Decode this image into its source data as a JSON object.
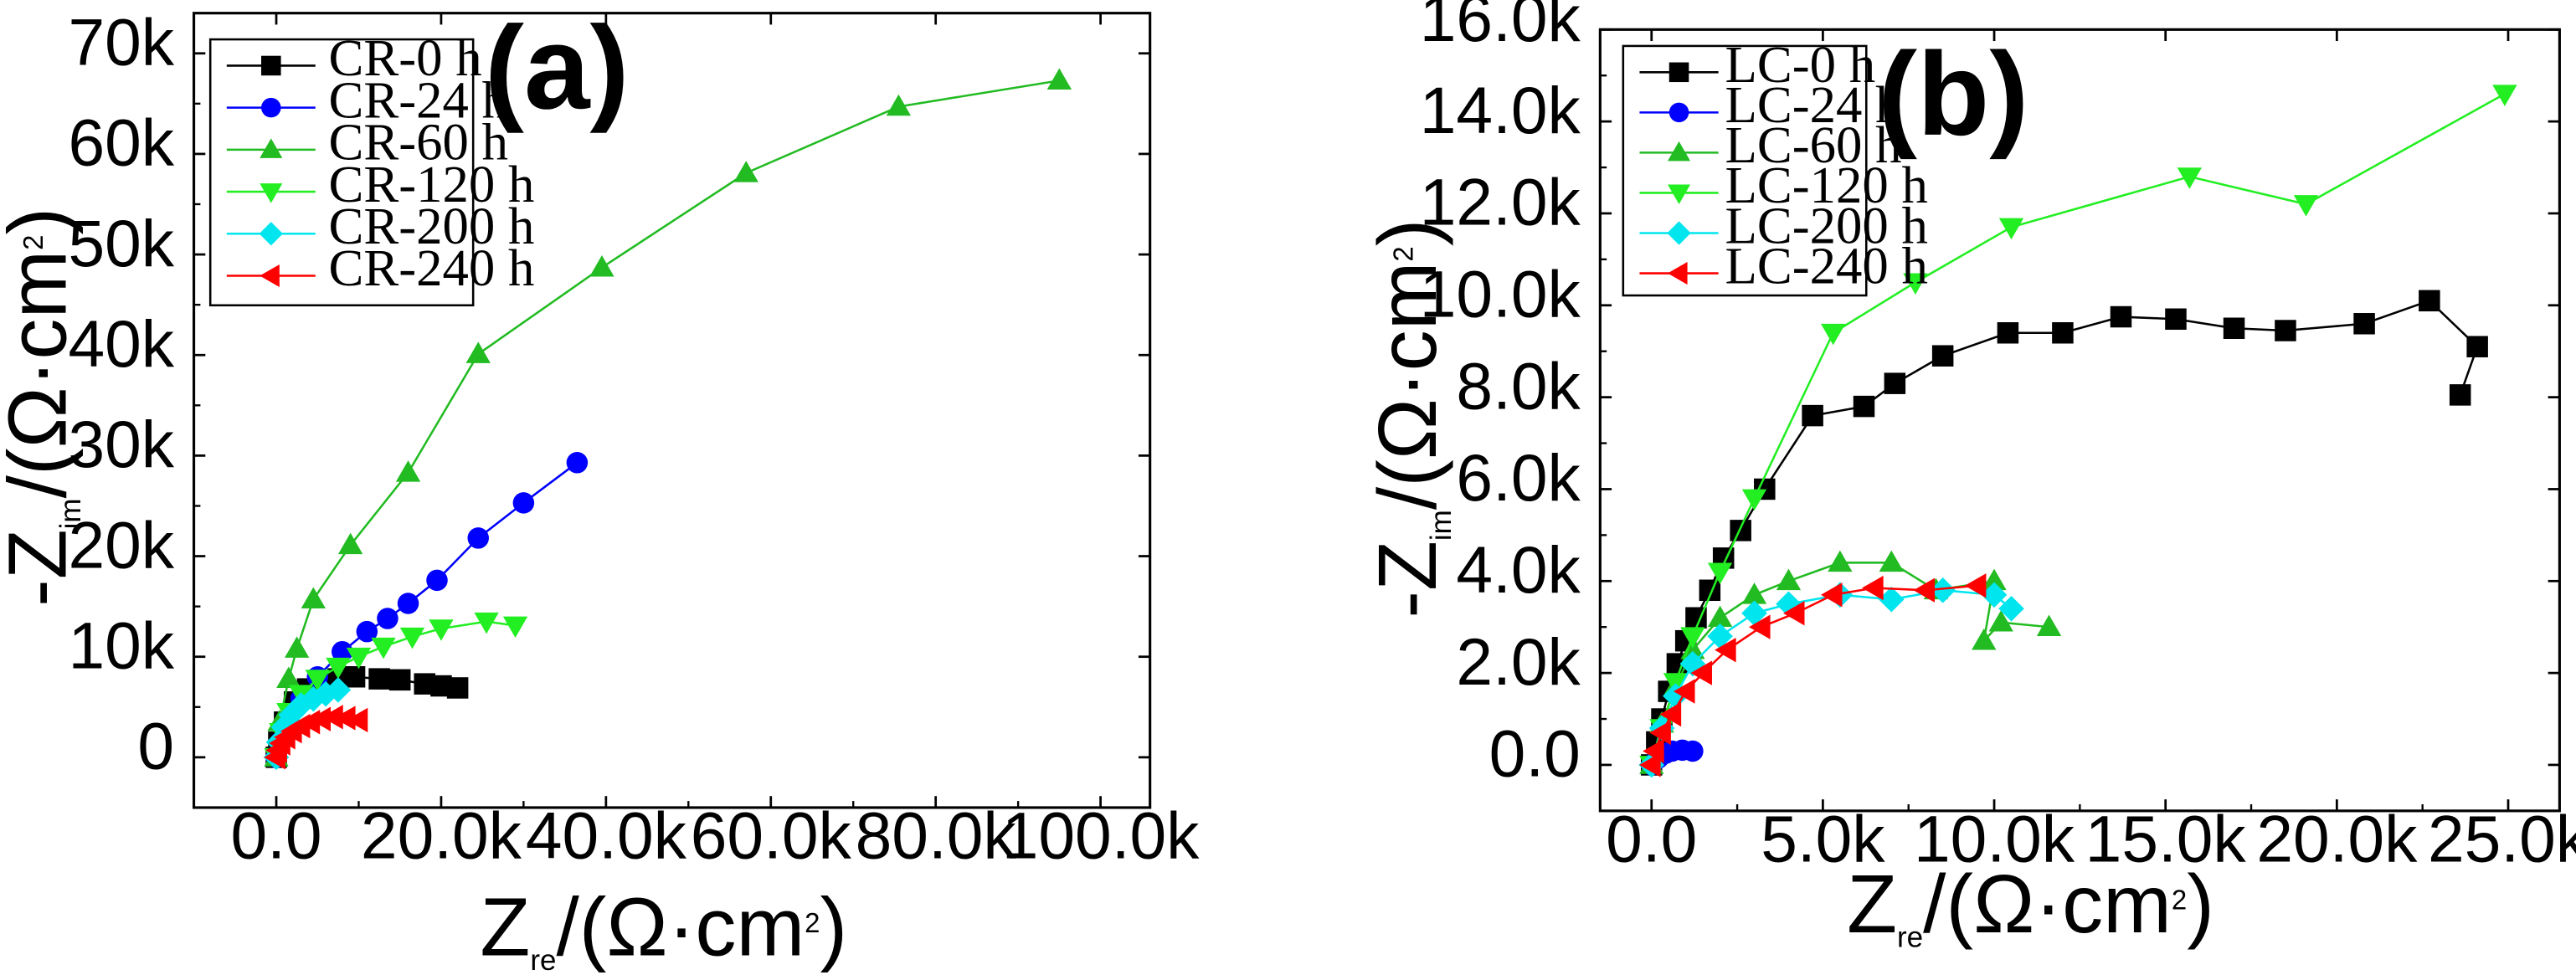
{
  "chart_data": [
    {
      "type": "line",
      "panel_label": "(a)",
      "xlabel": {
        "main": "Z",
        "sub": "re",
        "unit_open": "/(Ω·cm",
        "sup": "2",
        "unit_close": ")"
      },
      "ylabel": {
        "main": "-Z",
        "sub": "im",
        "unit_open": "/(Ω·cm",
        "sup": "2",
        "unit_close": ")"
      },
      "xlim": [
        -10000,
        106000
      ],
      "ylim": [
        -5000,
        74000
      ],
      "xticks": [
        0,
        20000,
        40000,
        60000,
        80000,
        100000
      ],
      "xtick_labels": [
        "0.0",
        "20.0k",
        "40.0k",
        "60.0k",
        "80.0k",
        "100.0k"
      ],
      "yticks": [
        0,
        10000,
        20000,
        30000,
        40000,
        50000,
        60000,
        70000
      ],
      "ytick_labels": [
        "0",
        "10k",
        "20k",
        "30k",
        "40k",
        "50k",
        "60k",
        "70k"
      ],
      "legend_position": "top-left",
      "series": [
        {
          "name": "CR-0 h",
          "color": "#000000",
          "marker": "square",
          "x": [
            0,
            300,
            1000,
            2200,
            3800,
            5500,
            7500,
            9500,
            12500,
            15000,
            18000,
            20000,
            22000
          ],
          "y": [
            0,
            1500,
            3500,
            5500,
            6800,
            7500,
            7800,
            8000,
            7800,
            7700,
            7300,
            7100,
            6900
          ]
        },
        {
          "name": "CR-24 h",
          "color": "#0000ff",
          "marker": "circle",
          "x": [
            0,
            500,
            1500,
            3000,
            5000,
            8000,
            11000,
            13500,
            16000,
            19500,
            24500,
            30000,
            36500
          ],
          "y": [
            0,
            1500,
            3500,
            5800,
            8000,
            10500,
            12500,
            13800,
            15300,
            17600,
            21800,
            25300,
            29300
          ]
        },
        {
          "name": "CR-60 h",
          "color": "#22bb22",
          "marker": "triangle-up",
          "x": [
            0,
            400,
            1500,
            2500,
            4500,
            9000,
            16000,
            24500,
            39500,
            57000,
            75500,
            95000
          ],
          "y": [
            0,
            3500,
            7800,
            10800,
            15700,
            21100,
            28300,
            40100,
            48700,
            58100,
            64700,
            67300
          ]
        },
        {
          "name": "CR-120 h",
          "color": "#22ee22",
          "marker": "triangle-down",
          "x": [
            0,
            600,
            1500,
            3000,
            5000,
            7500,
            10000,
            13000,
            16500,
            20000,
            25500,
            29000
          ],
          "y": [
            0,
            2500,
            4500,
            6300,
            7800,
            9000,
            10000,
            11000,
            12000,
            12800,
            13500,
            13100
          ]
        },
        {
          "name": "CR-200 h",
          "color": "#00e5ee",
          "marker": "diamond",
          "x": [
            0,
            300,
            900,
            1800,
            3000,
            4500,
            6000,
            7500
          ],
          "y": [
            0,
            1500,
            3000,
            4200,
            5200,
            5800,
            6300,
            6700
          ]
        },
        {
          "name": "CR-240 h",
          "color": "#ff0000",
          "marker": "triangle-left",
          "x": [
            0,
            200,
            600,
            1200,
            2000,
            3000,
            4200,
            5500,
            7000,
            8500,
            10000
          ],
          "y": [
            0,
            700,
            1400,
            2000,
            2600,
            3100,
            3500,
            3800,
            4000,
            3900,
            3700
          ]
        }
      ]
    },
    {
      "type": "line",
      "panel_label": "(b)",
      "xlabel": {
        "main": "Z",
        "sub": "re",
        "unit_open": "/(Ω·cm",
        "sup": "2",
        "unit_close": ")"
      },
      "ylabel": {
        "main": "-Z",
        "sub": "im",
        "unit_open": "/(Ω·cm",
        "sup": "2",
        "unit_close": ")"
      },
      "xlim": [
        -1500,
        26500
      ],
      "ylim": [
        -1000,
        16000
      ],
      "xticks": [
        0,
        5000,
        10000,
        15000,
        20000,
        25000
      ],
      "xtick_labels": [
        "0.0",
        "5.0k",
        "10.0k",
        "15.0k",
        "20.0k",
        "25.0k"
      ],
      "yticks": [
        0,
        2000,
        4000,
        6000,
        8000,
        10000,
        12000,
        14000,
        16000
      ],
      "ytick_labels": [
        "0.0",
        "2.0k",
        "4.0k",
        "6.0k",
        "8.0k",
        "10.0k",
        "12.0k",
        "14.0k",
        "16.0k"
      ],
      "legend_position": "top-left",
      "series": [
        {
          "name": "LC-0 h",
          "color": "#000000",
          "marker": "square",
          "x": [
            0,
            150,
            300,
            500,
            750,
            1000,
            1300,
            1700,
            2100,
            2600,
            3300,
            4700,
            6200,
            7100,
            8500,
            10400,
            12000,
            13700,
            15300,
            17000,
            18500,
            20800,
            22700,
            24100,
            23600
          ],
          "y": [
            0,
            500,
            1000,
            1600,
            2200,
            2700,
            3200,
            3800,
            4500,
            5100,
            6000,
            7600,
            7800,
            8300,
            8900,
            9400,
            9400,
            9750,
            9700,
            9500,
            9450,
            9600,
            10100,
            9100,
            8050
          ]
        },
        {
          "name": "LC-24 h",
          "color": "#0000ff",
          "marker": "circle",
          "x": [
            0,
            200,
            400,
            600,
            900,
            1200
          ],
          "y": [
            0,
            150,
            250,
            300,
            320,
            300
          ]
        },
        {
          "name": "LC-60 h",
          "color": "#22bb22",
          "marker": "triangle-up",
          "x": [
            0,
            300,
            700,
            1200,
            2000,
            3000,
            4000,
            5500,
            7000,
            8300,
            10000,
            9700,
            10200,
            11600
          ],
          "y": [
            0,
            900,
            1700,
            2500,
            3200,
            3700,
            4000,
            4400,
            4400,
            3800,
            4000,
            2700,
            3100,
            3000
          ]
        },
        {
          "name": "LC-120 h",
          "color": "#22ee22",
          "marker": "triangle-down",
          "x": [
            0,
            300,
            700,
            1200,
            2000,
            3000,
            5300,
            7700,
            10500,
            15700,
            19100,
            24900
          ],
          "y": [
            0,
            800,
            1800,
            2800,
            4200,
            5800,
            9400,
            10500,
            11700,
            12800,
            12200,
            14600
          ]
        },
        {
          "name": "LC-200 h",
          "color": "#00e5ee",
          "marker": "diamond",
          "x": [
            0,
            300,
            700,
            1200,
            2000,
            3000,
            4000,
            5500,
            7000,
            8500,
            10000,
            10500
          ],
          "y": [
            0,
            800,
            1500,
            2200,
            2800,
            3300,
            3500,
            3700,
            3600,
            3800,
            3700,
            3400
          ]
        },
        {
          "name": "LC-240 h",
          "color": "#ff0000",
          "marker": "triangle-left",
          "x": [
            0,
            100,
            300,
            600,
            1000,
            1500,
            2200,
            3200,
            4200,
            5300,
            6500,
            8000,
            9500
          ],
          "y": [
            0,
            300,
            700,
            1100,
            1600,
            2000,
            2500,
            3000,
            3300,
            3700,
            3850,
            3800,
            3900
          ]
        }
      ]
    }
  ]
}
